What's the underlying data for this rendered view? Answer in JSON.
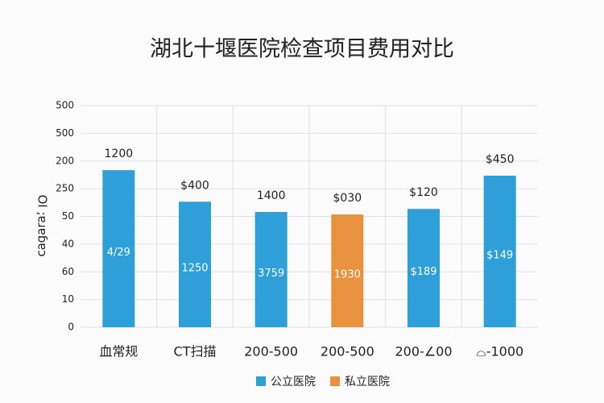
{
  "chart_data": {
    "type": "bar",
    "title": "湖北十堰医院检查项目费用对比",
    "y_label": "OI ;ɐɹɐɓɐɔ",
    "categories": [
      "血常规",
      "CT扫描",
      "200-500",
      "200-500",
      "200-∠00",
      "⌓-1000"
    ],
    "values": [
      5.67,
      4.53,
      4.16,
      4.07,
      4.27,
      5.47
    ],
    "value_labels": [
      "1200",
      "$400",
      "1400",
      "$030",
      "$120",
      "$450"
    ],
    "inner_labels": [
      "4/29",
      "1250",
      "3759",
      "1930",
      "$189",
      "$149"
    ],
    "colors": [
      "#2e9fd8",
      "#2e9fd8",
      "#2e9fd8",
      "#e8913f",
      "#2e9fd8",
      "#2e9fd8"
    ],
    "legend": [
      {
        "name": "公立医院",
        "color": "#2e9fd8"
      },
      {
        "name": "私立医院",
        "color": "#e8913f"
      }
    ],
    "ylim": [
      0,
      8
    ],
    "yticks": [
      {
        "value": 0,
        "label": "0"
      },
      {
        "value": 1,
        "label": "10"
      },
      {
        "value": 2,
        "label": "60"
      },
      {
        "value": 3,
        "label": "40"
      },
      {
        "value": 4,
        "label": "50"
      },
      {
        "value": 5,
        "label": "250"
      },
      {
        "value": 6,
        "label": "200"
      },
      {
        "value": 7,
        "label": "500"
      },
      {
        "value": 8,
        "label": "500"
      }
    ],
    "grid": true
  }
}
